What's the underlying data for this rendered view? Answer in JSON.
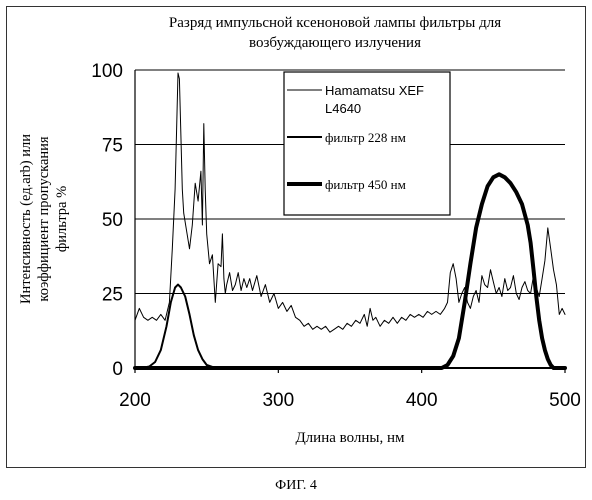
{
  "figure_caption": "ФИГ. 4",
  "chart_data": {
    "type": "line",
    "title_line1": "Разряд импульсной ксеноновой лампы фильтры для",
    "title_line2": "возбуждающего излучения",
    "xlabel": "Длина волны, нм",
    "ylabel_line1": "Интенсивность (ед.arb) или",
    "ylabel_line2": "коэффициент пропускания",
    "ylabel_line3": "фильтра %",
    "xlim": [
      200,
      500
    ],
    "ylim": [
      0,
      100
    ],
    "xticks": [
      200,
      300,
      400,
      500
    ],
    "yticks": [
      0,
      25,
      50,
      75,
      100
    ],
    "grid": "horizontal",
    "legend_position": "top-right",
    "legend": [
      {
        "label_line1": "Hamamatsu XEF",
        "label_line2": "L4640",
        "style": "thin"
      },
      {
        "label_line1": "фильтр 228 нм",
        "label_line2": "",
        "style": "medium"
      },
      {
        "label_line1": "фильтр 450 нм",
        "label_line2": "",
        "style": "thick"
      }
    ],
    "series": [
      {
        "name": "Hamamatsu XEF L4640",
        "color": "#000000",
        "x": [
          200,
          203,
          206,
          209,
          212,
          215,
          218,
          221,
          224,
          226,
          228,
          229,
          230,
          231,
          232,
          233,
          234,
          236,
          238,
          240,
          242,
          244,
          246,
          247,
          248,
          249,
          250,
          252,
          254,
          256,
          258,
          260,
          261,
          262,
          263,
          264,
          266,
          268,
          270,
          272,
          274,
          276,
          278,
          280,
          282,
          285,
          288,
          291,
          294,
          297,
          300,
          303,
          306,
          309,
          312,
          315,
          318,
          321,
          324,
          327,
          330,
          333,
          336,
          339,
          342,
          345,
          348,
          351,
          354,
          357,
          360,
          362,
          364,
          366,
          368,
          371,
          374,
          377,
          380,
          383,
          386,
          389,
          392,
          395,
          398,
          401,
          404,
          407,
          410,
          413,
          416,
          418,
          420,
          422,
          424,
          426,
          428,
          430,
          432,
          434,
          436,
          438,
          440,
          442,
          444,
          446,
          448,
          450,
          452,
          454,
          456,
          458,
          460,
          462,
          464,
          466,
          468,
          470,
          472,
          474,
          476,
          478,
          480,
          482,
          484,
          486,
          488,
          490,
          492,
          494,
          496,
          498,
          500
        ],
        "y": [
          16,
          20,
          17,
          16,
          17,
          16,
          18,
          16,
          22,
          40,
          60,
          80,
          99,
          97,
          78,
          60,
          52,
          46,
          40,
          48,
          62,
          56,
          66,
          48,
          82,
          60,
          45,
          35,
          38,
          22,
          35,
          34,
          45,
          30,
          25,
          28,
          32,
          26,
          28,
          32,
          26,
          30,
          27,
          30,
          26,
          31,
          24,
          28,
          22,
          25,
          20,
          22,
          19,
          21,
          17,
          16,
          14,
          15,
          13,
          14,
          13,
          14,
          12,
          13,
          14,
          13,
          15,
          14,
          16,
          15,
          18,
          14,
          20,
          16,
          17,
          14,
          16,
          15,
          17,
          15,
          17,
          16,
          18,
          17,
          18,
          17,
          19,
          18,
          19,
          18,
          20,
          22,
          32,
          35,
          30,
          22,
          25,
          27,
          22,
          20,
          24,
          26,
          22,
          31,
          28,
          27,
          33,
          29,
          25,
          27,
          24,
          30,
          26,
          27,
          31,
          25,
          23,
          27,
          29,
          26,
          25,
          31,
          27,
          24,
          30,
          36,
          47,
          40,
          33,
          28,
          18,
          20,
          18
        ]
      },
      {
        "name": "фильтр 228 нм",
        "color": "#000000",
        "x": [
          200,
          205,
          210,
          214,
          218,
          222,
          225,
          228,
          230,
          232,
          235,
          238,
          241,
          244,
          247,
          250,
          253,
          256,
          258,
          500
        ],
        "y": [
          0,
          0,
          0.5,
          2,
          6,
          14,
          22,
          27,
          28,
          27,
          24,
          18,
          11,
          6,
          3,
          1,
          0.5,
          0,
          0,
          0
        ]
      },
      {
        "name": "фильтр 450 нм",
        "color": "#000000",
        "x": [
          200,
          410,
          414,
          418,
          422,
          426,
          430,
          434,
          438,
          442,
          446,
          450,
          454,
          458,
          462,
          466,
          470,
          474,
          476,
          478,
          480,
          482,
          484,
          486,
          488,
          490,
          492,
          494,
          496,
          500
        ],
        "y": [
          0,
          0,
          0,
          1,
          4,
          10,
          22,
          35,
          47,
          55,
          61,
          64,
          65,
          64,
          62,
          59,
          55,
          48,
          42,
          33,
          24,
          16,
          10,
          6,
          3,
          1,
          0,
          0,
          0,
          0
        ]
      }
    ]
  }
}
